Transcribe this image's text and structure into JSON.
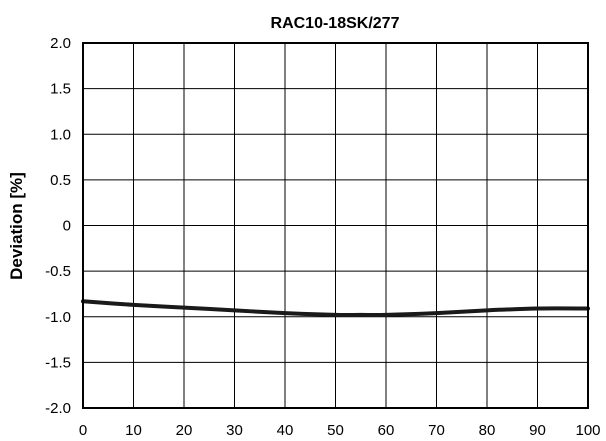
{
  "chart_data": {
    "type": "line",
    "title": "RAC10-18SK/277",
    "xlabel": "",
    "ylabel": "Deviation [%]",
    "xlim": [
      0,
      100
    ],
    "ylim": [
      -2.0,
      2.0
    ],
    "x_ticks": [
      0,
      10,
      20,
      30,
      40,
      50,
      60,
      70,
      80,
      90,
      100
    ],
    "y_ticks": [
      2.0,
      1.5,
      1.0,
      0.5,
      0,
      -0.5,
      -1.0,
      -1.5,
      -2.0
    ],
    "x_tick_labels": [
      "0",
      "10",
      "20",
      "30",
      "40",
      "50",
      "60",
      "70",
      "80",
      "90",
      "100"
    ],
    "y_tick_labels": [
      "2.0",
      "1.5",
      "1.0",
      "0.5",
      "0",
      "-0.5",
      "-1.0",
      "-1.5",
      "-2.0"
    ],
    "grid": true,
    "series": [
      {
        "color": "#1a1a1a",
        "x": [
          0,
          10,
          20,
          30,
          40,
          50,
          55,
          60,
          70,
          80,
          90,
          100
        ],
        "y": [
          -0.83,
          -0.87,
          -0.9,
          -0.93,
          -0.96,
          -0.98,
          -0.98,
          -0.98,
          -0.96,
          -0.93,
          -0.91,
          -0.91
        ]
      }
    ]
  }
}
